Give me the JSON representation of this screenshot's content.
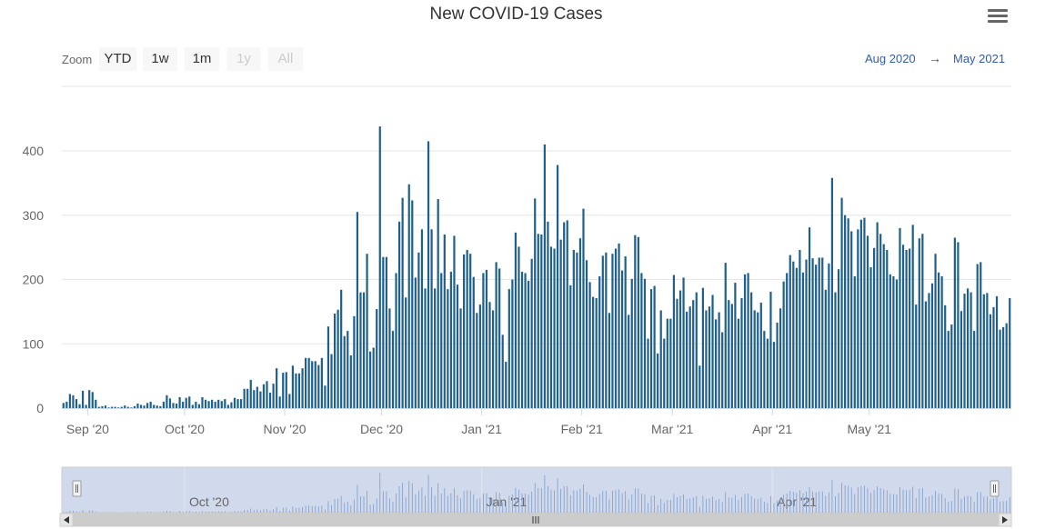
{
  "title": "New COVID-19 Cases",
  "menu_icon": "hamburger-menu-icon",
  "zoom": {
    "label": "Zoom",
    "buttons": [
      {
        "label": "YTD",
        "enabled": true
      },
      {
        "label": "1w",
        "enabled": true
      },
      {
        "label": "1m",
        "enabled": true
      },
      {
        "label": "1y",
        "enabled": false
      },
      {
        "label": "All",
        "enabled": false
      }
    ]
  },
  "range": {
    "from": "Aug 2020",
    "arrow": "→",
    "to": "May 2021"
  },
  "colors": {
    "bar": "#1f5f8b",
    "grid": "#e6e6e6",
    "navigator_mask": "#ccd6eb",
    "navigator_line": "#7f9cc9"
  },
  "chart_data": {
    "type": "bar",
    "title": "New COVID-19 Cases",
    "xlabel": "",
    "ylabel": "",
    "ylim": [
      0,
      450
    ],
    "yticks": [
      0,
      100,
      200,
      300,
      400
    ],
    "start_date": "2020-08-24",
    "xtick_labels": [
      {
        "label": "Sep '20",
        "day_index": 8
      },
      {
        "label": "Oct '20",
        "day_index": 38
      },
      {
        "label": "Nov '20",
        "day_index": 69
      },
      {
        "label": "Dec '20",
        "day_index": 99
      },
      {
        "label": "Jan '21",
        "day_index": 130
      },
      {
        "label": "Feb '21",
        "day_index": 161
      },
      {
        "label": "Mar '21",
        "day_index": 189
      },
      {
        "label": "Apr '21",
        "day_index": 220
      },
      {
        "label": "May '21",
        "day_index": 250
      }
    ],
    "navigator_labels": [
      {
        "label": "Oct '20",
        "day_index": 38
      },
      {
        "label": "Jan '21",
        "day_index": 130
      },
      {
        "label": "Apr '21",
        "day_index": 220
      }
    ],
    "values": [
      8,
      10,
      22,
      20,
      14,
      6,
      27,
      5,
      28,
      25,
      13,
      2,
      3,
      4,
      1,
      2,
      2,
      1,
      2,
      4,
      2,
      1,
      3,
      7,
      5,
      4,
      8,
      10,
      5,
      4,
      3,
      10,
      20,
      15,
      8,
      7,
      17,
      10,
      16,
      18,
      5,
      10,
      6,
      17,
      13,
      11,
      13,
      10,
      13,
      11,
      14,
      5,
      9,
      16,
      14,
      14,
      30,
      30,
      44,
      28,
      33,
      26,
      37,
      42,
      24,
      38,
      62,
      18,
      55,
      56,
      22,
      66,
      54,
      54,
      62,
      78,
      78,
      73,
      73,
      67,
      78,
      35,
      127,
      84,
      147,
      153,
      184,
      112,
      120,
      82,
      143,
      305,
      180,
      180,
      240,
      88,
      94,
      154,
      438,
      235,
      235,
      155,
      120,
      210,
      290,
      327,
      172,
      348,
      323,
      203,
      242,
      278,
      186,
      415,
      278,
      186,
      325,
      210,
      270,
      185,
      212,
      268,
      192,
      155,
      239,
      246,
      240,
      204,
      148,
      161,
      210,
      215,
      165,
      152,
      227,
      217,
      114,
      72,
      185,
      200,
      273,
      251,
      212,
      210,
      198,
      232,
      326,
      271,
      270,
      410,
      290,
      251,
      248,
      378,
      262,
      289,
      292,
      191,
      246,
      242,
      264,
      310,
      230,
      196,
      173,
      171,
      205,
      237,
      242,
      148,
      240,
      248,
      256,
      214,
      236,
      145,
      201,
      269,
      266,
      210,
      201,
      108,
      185,
      190,
      85,
      152,
      108,
      139,
      139,
      207,
      170,
      183,
      203,
      150,
      158,
      168,
      180,
      66,
      187,
      152,
      158,
      176,
      138,
      149,
      118,
      226,
      168,
      162,
      195,
      139,
      171,
      208,
      210,
      180,
      152,
      149,
      164,
      120,
      108,
      181,
      103,
      133,
      155,
      197,
      210,
      238,
      228,
      218,
      246,
      211,
      231,
      281,
      233,
      223,
      234,
      234,
      184,
      225,
      358,
      180,
      216,
      327,
      300,
      295,
      275,
      205,
      278,
      293,
      296,
      268,
      219,
      249,
      289,
      271,
      255,
      246,
      208,
      205,
      200,
      280,
      254,
      246,
      248,
      285,
      161,
      264,
      271,
      166,
      179,
      194,
      240,
      211,
      205,
      160,
      120,
      130,
      265,
      258,
      151,
      178,
      186,
      180,
      120,
      224,
      227,
      177,
      179,
      146,
      157,
      174,
      122,
      126,
      132,
      171
    ],
    "navigator": {
      "range_start": "Aug 2020",
      "range_end": "May 2021"
    }
  }
}
